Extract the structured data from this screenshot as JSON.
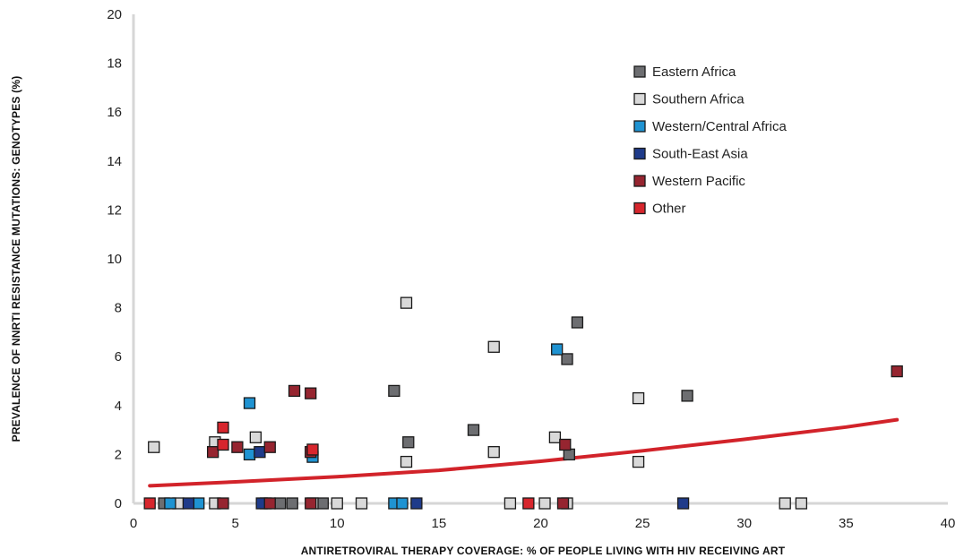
{
  "chart_data": {
    "type": "scatter",
    "xlabel": "ANTIRETROVIRAL THERAPY COVERAGE: % OF PEOPLE LIVING WITH HIV RECEIVING ART",
    "ylabel": "PREVALENCE OF NNRTI RESISTANCE MUTATIONS: GENOTYPES (%)",
    "xlim": [
      0,
      40
    ],
    "ylim": [
      0,
      20
    ],
    "x_ticks": [
      "0",
      "5",
      "10",
      "15",
      "20",
      "25",
      "30",
      "35",
      "40"
    ],
    "y_ticks": [
      "0",
      "2",
      "4",
      "6",
      "8",
      "10",
      "12",
      "14",
      "16",
      "18",
      "20"
    ],
    "grid": false,
    "legend_position": "top-right",
    "series": [
      {
        "name": "Eastern Africa",
        "color": "#6d6e71",
        "points": [
          [
            1.5,
            0
          ],
          [
            6.5,
            0
          ],
          [
            7.2,
            0
          ],
          [
            7.8,
            0
          ],
          [
            9.3,
            0
          ],
          [
            12.8,
            4.6
          ],
          [
            13.5,
            2.5
          ],
          [
            16.7,
            3.0
          ],
          [
            21.3,
            5.9
          ],
          [
            21.4,
            2.0
          ],
          [
            21.8,
            7.4
          ],
          [
            27.2,
            4.4
          ]
        ]
      },
      {
        "name": "Southern Africa",
        "color": "#d9d9d9",
        "points": [
          [
            1.0,
            2.3
          ],
          [
            2.2,
            0
          ],
          [
            4.0,
            0
          ],
          [
            4.0,
            2.5
          ],
          [
            6.0,
            2.7
          ],
          [
            8.8,
            0
          ],
          [
            10.0,
            0
          ],
          [
            11.2,
            0
          ],
          [
            13.4,
            8.2
          ],
          [
            13.4,
            1.7
          ],
          [
            17.7,
            6.4
          ],
          [
            17.7,
            2.1
          ],
          [
            18.5,
            0
          ],
          [
            20.2,
            0
          ],
          [
            20.7,
            2.7
          ],
          [
            21.3,
            0
          ],
          [
            24.8,
            4.3
          ],
          [
            24.8,
            1.7
          ],
          [
            32.0,
            0
          ],
          [
            32.8,
            0
          ]
        ]
      },
      {
        "name": "Western/Central Africa",
        "color": "#1f93d2",
        "points": [
          [
            1.8,
            0
          ],
          [
            3.2,
            0
          ],
          [
            5.7,
            4.1
          ],
          [
            5.7,
            2.0
          ],
          [
            8.8,
            1.9
          ],
          [
            12.8,
            0
          ],
          [
            13.2,
            0
          ],
          [
            20.8,
            6.3
          ]
        ]
      },
      {
        "name": "South-East Asia",
        "color": "#1f3b8a",
        "points": [
          [
            2.7,
            0
          ],
          [
            6.2,
            2.1
          ],
          [
            6.3,
            0
          ],
          [
            13.9,
            0
          ],
          [
            27.0,
            0
          ]
        ]
      },
      {
        "name": "Western Pacific",
        "color": "#962530",
        "points": [
          [
            3.9,
            2.1
          ],
          [
            4.4,
            0
          ],
          [
            5.1,
            2.3
          ],
          [
            6.7,
            2.3
          ],
          [
            6.7,
            0
          ],
          [
            7.9,
            4.6
          ],
          [
            8.7,
            4.5
          ],
          [
            8.7,
            2.1
          ],
          [
            8.7,
            0
          ],
          [
            21.1,
            0
          ],
          [
            21.2,
            2.4
          ],
          [
            37.5,
            5.4
          ]
        ]
      },
      {
        "name": "Other",
        "color": "#d7262d",
        "points": [
          [
            0.8,
            0
          ],
          [
            4.4,
            3.1
          ],
          [
            4.4,
            2.4
          ],
          [
            8.8,
            2.2
          ],
          [
            19.4,
            0
          ]
        ]
      }
    ],
    "trendline": {
      "color": "#d2232a",
      "points": [
        [
          0.8,
          0.72
        ],
        [
          5,
          0.88
        ],
        [
          10,
          1.09
        ],
        [
          15,
          1.35
        ],
        [
          20,
          1.72
        ],
        [
          25,
          2.15
        ],
        [
          30,
          2.62
        ],
        [
          35,
          3.12
        ],
        [
          37.5,
          3.42
        ]
      ]
    }
  }
}
